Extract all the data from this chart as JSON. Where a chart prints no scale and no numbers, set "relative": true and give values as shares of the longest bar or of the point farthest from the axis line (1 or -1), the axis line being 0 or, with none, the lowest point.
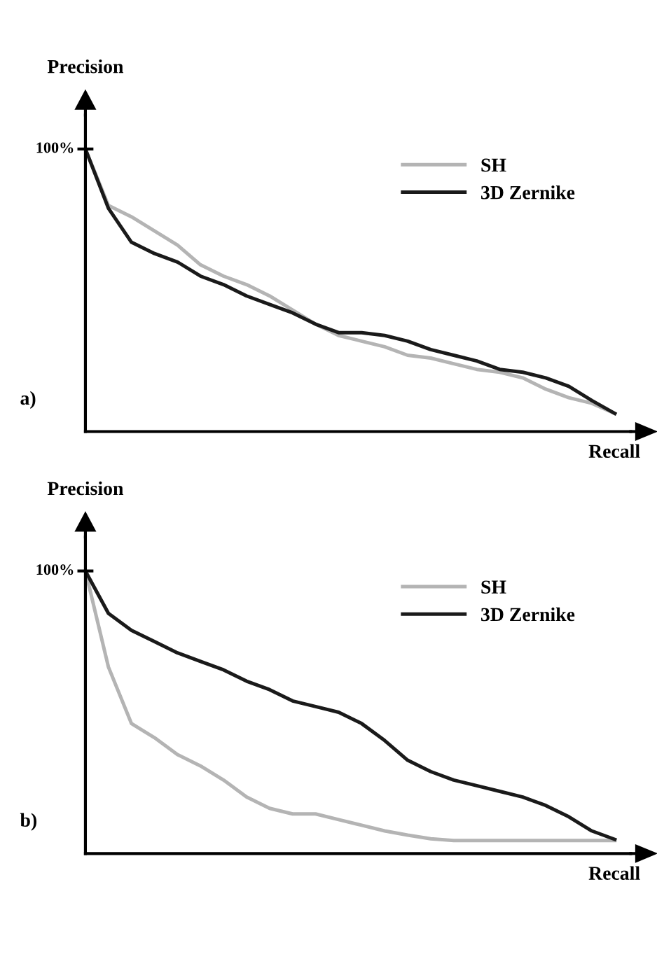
{
  "chart_data": [
    {
      "type": "line",
      "relative": true,
      "xlabel": "Recall",
      "ylabel": "Precision",
      "legend": "top right",
      "grid": false,
      "marker": "none",
      "line_style": "solid",
      "annotations": [
        "100%",
        "a)"
      ],
      "categories": [
        null,
        null,
        null,
        null,
        null,
        null,
        null,
        null,
        null,
        null,
        null,
        null,
        null,
        null,
        null,
        null,
        null,
        null,
        null,
        null,
        null,
        null,
        null,
        null
      ],
      "series": [
        {
          "name": "SH",
          "color": "#b4b4b4",
          "values": [
            1,
            0.8,
            0.76,
            0.71,
            0.66,
            0.59,
            0.55,
            0.52,
            0.48,
            0.43,
            0.38,
            0.34,
            0.32,
            0.3,
            0.27,
            0.26,
            0.24,
            0.22,
            0.21,
            0.19,
            0.15,
            0.12,
            0.1,
            0.064
          ]
        },
        {
          "name": "3D Zernike",
          "color": "#1a1a1a",
          "values": [
            1,
            0.79,
            0.67,
            0.63,
            0.6,
            0.55,
            0.52,
            0.48,
            0.45,
            0.42,
            0.38,
            0.35,
            0.35,
            0.34,
            0.32,
            0.29,
            0.27,
            0.25,
            0.22,
            0.21,
            0.19,
            0.16,
            0.11,
            0.064
          ]
        }
      ]
    },
    {
      "type": "line",
      "relative": true,
      "xlabel": "Recall",
      "ylabel": "Precision",
      "legend": "top right",
      "grid": false,
      "marker": "none",
      "line_style": "solid",
      "annotations": [
        "100%",
        "b)"
      ],
      "categories": [
        null,
        null,
        null,
        null,
        null,
        null,
        null,
        null,
        null,
        null,
        null,
        null,
        null,
        null,
        null,
        null,
        null,
        null,
        null,
        null,
        null,
        null,
        null,
        null
      ],
      "series": [
        {
          "name": "SH",
          "color": "#b4b4b4",
          "values": [
            1,
            0.66,
            0.46,
            0.41,
            0.35,
            0.31,
            0.26,
            0.2,
            0.16,
            0.14,
            0.14,
            0.12,
            0.1,
            0.08,
            0.065,
            0.052,
            0.046,
            0.046,
            0.046,
            0.046,
            0.046,
            0.046,
            0.046,
            0.046
          ]
        },
        {
          "name": "3D Zernike",
          "color": "#1a1a1a",
          "values": [
            1,
            0.85,
            0.79,
            0.75,
            0.71,
            0.68,
            0.65,
            0.61,
            0.58,
            0.54,
            0.52,
            0.5,
            0.46,
            0.4,
            0.33,
            0.29,
            0.26,
            0.24,
            0.22,
            0.2,
            0.17,
            0.13,
            0.08,
            0.05
          ]
        }
      ]
    }
  ]
}
